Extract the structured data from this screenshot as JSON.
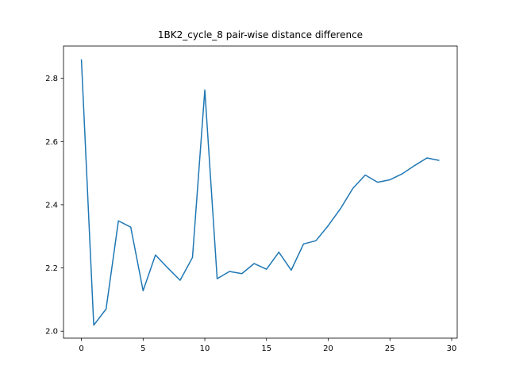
{
  "chart_data": {
    "type": "line",
    "title": "1BK2_cycle_8 pair-wise distance difference",
    "xlabel": "",
    "ylabel": "",
    "xlim": [
      -1.45,
      30.45
    ],
    "ylim": [
      1.978,
      2.902
    ],
    "xticks": [
      0,
      5,
      10,
      15,
      20,
      25,
      30
    ],
    "yticks": [
      2.0,
      2.2,
      2.4,
      2.6,
      2.8
    ],
    "grid": false,
    "legend": "none",
    "line_color": "#1f77b4",
    "series": [
      {
        "x": [
          0,
          1,
          2,
          3,
          4,
          5,
          6,
          7,
          8,
          9,
          10,
          11,
          12,
          13,
          14,
          15,
          16,
          17,
          18,
          19,
          20,
          21,
          22,
          23,
          24,
          25,
          26,
          27,
          28,
          29
        ],
        "values": [
          2.86,
          2.019,
          2.07,
          2.349,
          2.329,
          2.128,
          2.241,
          2.2,
          2.161,
          2.233,
          2.763,
          2.166,
          2.189,
          2.182,
          2.214,
          2.196,
          2.25,
          2.193,
          2.276,
          2.286,
          2.334,
          2.388,
          2.452,
          2.494,
          2.471,
          2.479,
          2.498,
          2.524,
          2.548,
          2.54
        ]
      }
    ]
  }
}
